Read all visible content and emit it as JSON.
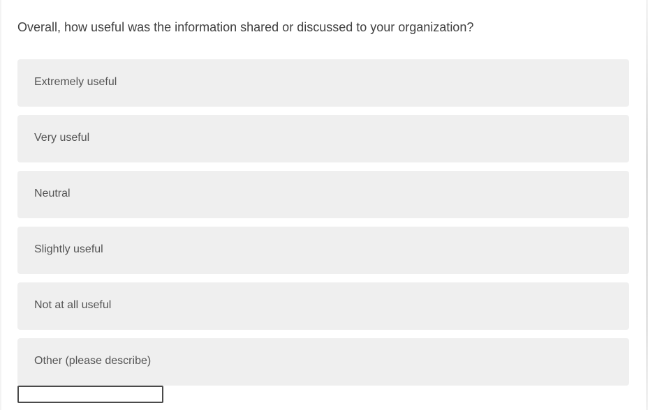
{
  "question": "Overall, how useful was the information shared or discussed to your organization?",
  "options": [
    {
      "label": "Extremely useful"
    },
    {
      "label": "Very useful"
    },
    {
      "label": "Neutral"
    },
    {
      "label": "Slightly useful"
    },
    {
      "label": "Not at all useful"
    },
    {
      "label": "Other (please describe)"
    }
  ],
  "other_input": {
    "value": ""
  },
  "colors": {
    "option_bg": "#efefef",
    "text": "#555555"
  }
}
